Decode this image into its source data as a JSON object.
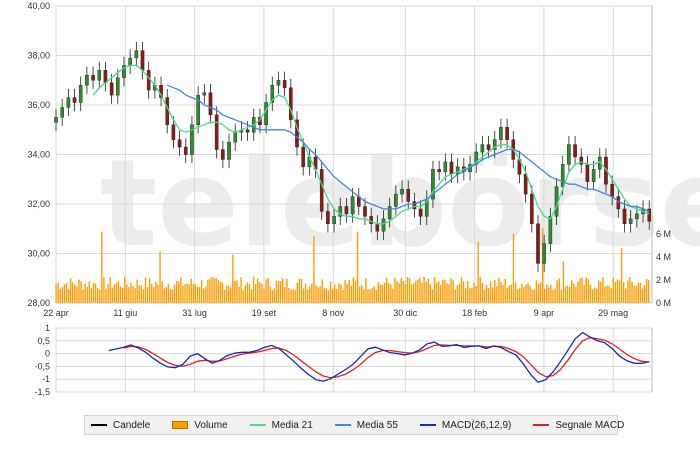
{
  "chart_data": [
    {
      "type": "line",
      "panel": "price",
      "ylim": [
        28,
        40
      ],
      "y_ticks": [
        "40,00",
        "38,00",
        "36,00",
        "34,00",
        "32,00",
        "30,00",
        "28,00"
      ],
      "y_tick_values": [
        40,
        38,
        36,
        34,
        32,
        30,
        28
      ],
      "x_tick_labels": [
        "22 apr",
        "11 giu",
        "31 lug",
        "19 set",
        "8 nov",
        "30 dic",
        "18 feb",
        "9 apr",
        "29 mag"
      ],
      "x_tick_days": [
        0,
        50,
        100,
        150,
        200,
        252,
        302,
        352,
        402
      ],
      "x_range_days": [
        0,
        430
      ],
      "candles_close": [
        35.5,
        35.9,
        36.3,
        36.1,
        36.8,
        37.2,
        37.0,
        37.4,
        36.9,
        36.4,
        37.1,
        37.6,
        37.9,
        38.2,
        37.4,
        36.6,
        36.8,
        36.3,
        35.2,
        34.6,
        34.3,
        34.0,
        35.2,
        36.4,
        36.5,
        35.6,
        34.2,
        33.8,
        34.5,
        34.9,
        35.0,
        34.9,
        35.5,
        35.2,
        36.1,
        36.8,
        37.0,
        36.7,
        35.4,
        34.3,
        33.5,
        33.9,
        33.4,
        31.7,
        31.2,
        31.5,
        31.9,
        31.6,
        32.3,
        31.9,
        31.5,
        31.2,
        30.9,
        31.4,
        31.9,
        32.4,
        32.6,
        32.1,
        31.8,
        31.5,
        32.2,
        33.4,
        33.3,
        33.7,
        33.2,
        33.5,
        33.3,
        33.6,
        34.1,
        34.4,
        34.2,
        34.6,
        35.1,
        34.6,
        33.8,
        33.2,
        32.4,
        31.2,
        29.6,
        30.4,
        31.5,
        32.7,
        33.6,
        34.4,
        33.9,
        33.6,
        32.9,
        33.4,
        33.9,
        32.8,
        32.3,
        31.8,
        31.2,
        31.4,
        31.6,
        31.8,
        31.3
      ],
      "volume_axis_ticks": [
        "6 M",
        "4 M",
        "2 M",
        "0 M"
      ],
      "volume_axis_values": [
        6,
        4,
        2,
        0
      ],
      "volume_max_millions": 8,
      "series": [
        {
          "name": "Media 21",
          "values": [
            null,
            null,
            null,
            null,
            null,
            null,
            36.4,
            36.7,
            36.9,
            37.1,
            37.3,
            37.5,
            37.6,
            37.6,
            37.4,
            37.1,
            36.8,
            36.4,
            35.9,
            35.4,
            35.0,
            34.9,
            35.0,
            35.1,
            35.2,
            35.3,
            35.3,
            35.2,
            35.0,
            34.9,
            35.0,
            35.1,
            35.2,
            35.4,
            35.8,
            36.2,
            36.4,
            36.3,
            35.8,
            35.1,
            34.5,
            33.9,
            33.4,
            32.8,
            32.2,
            31.8,
            31.6,
            31.5,
            31.5,
            31.4,
            31.4,
            31.3,
            31.2,
            31.2,
            31.3,
            31.5,
            31.7,
            31.8,
            31.9,
            31.9,
            32.1,
            32.5,
            32.8,
            33.1,
            33.2,
            33.3,
            33.4,
            33.5,
            33.7,
            33.9,
            34.1,
            34.3,
            34.4,
            34.4,
            34.2,
            33.8,
            33.3,
            32.6,
            31.9,
            31.5,
            31.4,
            31.9,
            32.6,
            33.3,
            33.6,
            33.7,
            33.6,
            33.6,
            33.7,
            33.4,
            33.0,
            32.6,
            32.2,
            31.9,
            31.8,
            31.7,
            31.6
          ]
        },
        {
          "name": "Media 55",
          "values": [
            null,
            null,
            null,
            null,
            null,
            null,
            null,
            null,
            null,
            null,
            null,
            null,
            null,
            null,
            null,
            null,
            null,
            null,
            36.8,
            36.7,
            36.6,
            36.4,
            36.3,
            36.2,
            36.0,
            35.9,
            35.8,
            35.6,
            35.5,
            35.4,
            35.3,
            35.2,
            35.1,
            35.0,
            35.0,
            35.0,
            35.0,
            35.0,
            34.9,
            34.7,
            34.5,
            34.2,
            34.0,
            33.7,
            33.4,
            33.1,
            32.9,
            32.7,
            32.5,
            32.3,
            32.1,
            32.0,
            31.9,
            31.8,
            31.8,
            31.8,
            31.9,
            32.0,
            32.0,
            32.1,
            32.2,
            32.4,
            32.6,
            32.8,
            33.0,
            33.2,
            33.3,
            33.5,
            33.6,
            33.8,
            33.9,
            34.0,
            34.1,
            34.2,
            34.2,
            34.1,
            33.9,
            33.7,
            33.5,
            33.3,
            33.1,
            33.0,
            32.9,
            32.8,
            32.8,
            32.7,
            32.6,
            32.6,
            32.5,
            32.4,
            32.3,
            32.1,
            32.0,
            31.9,
            31.9,
            31.8,
            31.7
          ]
        }
      ]
    },
    {
      "type": "line",
      "panel": "macd",
      "ylim": [
        -1.5,
        1
      ],
      "y_ticks": [
        "1",
        "0,5",
        "0",
        "-0,5",
        "-1",
        "-1,5"
      ],
      "y_tick_values": [
        1,
        0.5,
        0,
        -0.5,
        -1,
        -1.5
      ],
      "series": [
        {
          "name": "MACD(26,12,9)",
          "values": [
            0.12,
            0.18,
            0.25,
            0.34,
            0.22,
            0.05,
            -0.18,
            -0.38,
            -0.52,
            -0.55,
            -0.42,
            -0.1,
            0.0,
            -0.2,
            -0.38,
            -0.26,
            -0.08,
            0.02,
            0.05,
            0.05,
            0.12,
            0.24,
            0.32,
            0.2,
            -0.05,
            -0.3,
            -0.58,
            -0.82,
            -1.02,
            -1.08,
            -0.98,
            -0.8,
            -0.62,
            -0.42,
            -0.12,
            0.18,
            0.25,
            0.14,
            0.04,
            0.0,
            -0.05,
            0.02,
            0.15,
            0.38,
            0.45,
            0.28,
            0.3,
            0.35,
            0.24,
            0.28,
            0.3,
            0.2,
            0.3,
            0.24,
            0.08,
            -0.05,
            -0.4,
            -0.82,
            -1.12,
            -1.02,
            -0.72,
            -0.32,
            0.12,
            0.58,
            0.82,
            0.65,
            0.5,
            0.42,
            0.2,
            -0.1,
            -0.28,
            -0.38,
            -0.38,
            -0.32
          ]
        },
        {
          "name": "Segnale MACD",
          "values": [
            null,
            null,
            0.22,
            0.28,
            0.26,
            0.16,
            0.0,
            -0.18,
            -0.35,
            -0.46,
            -0.5,
            -0.42,
            -0.3,
            -0.26,
            -0.3,
            -0.29,
            -0.2,
            -0.1,
            -0.02,
            0.02,
            0.06,
            0.12,
            0.2,
            0.22,
            0.12,
            -0.06,
            -0.28,
            -0.5,
            -0.72,
            -0.88,
            -0.94,
            -0.9,
            -0.8,
            -0.64,
            -0.42,
            -0.16,
            0.04,
            0.12,
            0.12,
            0.08,
            0.04,
            0.02,
            0.08,
            0.2,
            0.32,
            0.34,
            0.32,
            0.32,
            0.3,
            0.3,
            0.3,
            0.26,
            0.28,
            0.28,
            0.2,
            0.08,
            -0.12,
            -0.42,
            -0.74,
            -0.9,
            -0.86,
            -0.62,
            -0.26,
            0.16,
            0.5,
            0.62,
            0.58,
            0.52,
            0.38,
            0.18,
            -0.04,
            -0.2,
            -0.3,
            -0.33
          ]
        }
      ]
    }
  ],
  "watermark": "telebörse",
  "legend": {
    "candles": "Candele",
    "volume": "Volume",
    "ma21": "Media 21",
    "ma55": "Media 55",
    "macd": "MACD(26,12,9)",
    "signal": "Segnale MACD"
  },
  "colors": {
    "candle_up": "#2e8b2e",
    "candle_down": "#8b1a1a",
    "volume": "#ff9c00",
    "ma21": "#44dd88",
    "ma55": "#4488dd",
    "macd": "#1a2aaa",
    "signal": "#dd2222",
    "grid": "#d8d8d8",
    "axis_text": "#333333"
  }
}
